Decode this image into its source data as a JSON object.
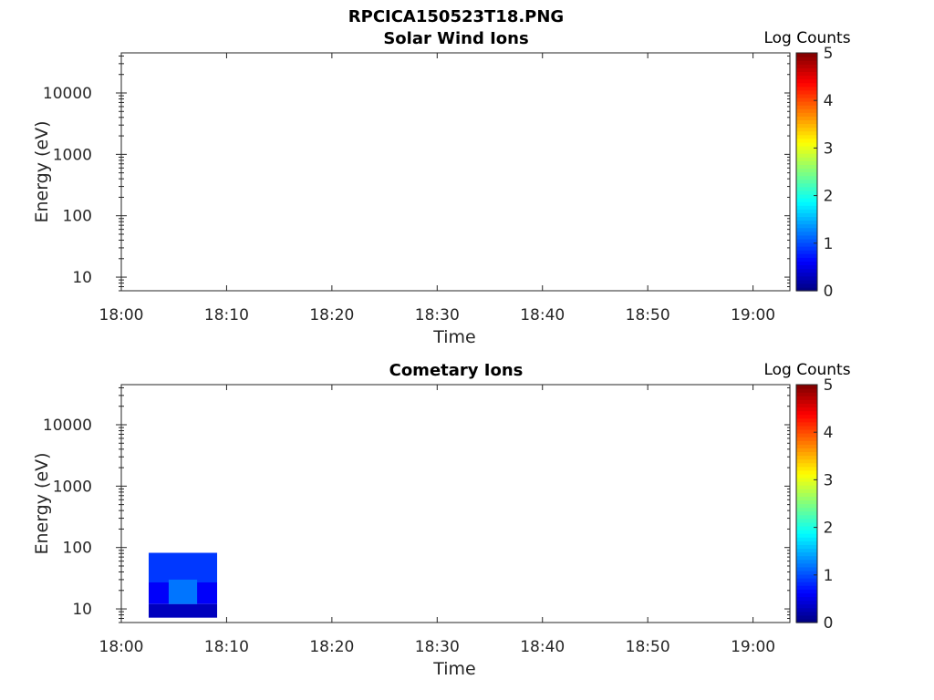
{
  "figure_title": "RPCICA150523T18.PNG",
  "chart_data": [
    {
      "type": "heatmap",
      "title": "Solar Wind Ions",
      "xlabel": "Time",
      "ylabel": "Energy (eV)",
      "y_scale": "log",
      "x_ticks": [
        "18:00",
        "18:10",
        "18:20",
        "18:30",
        "18:40",
        "18:50",
        "19:00"
      ],
      "x_range_minutes": [
        0,
        63.5
      ],
      "y_ticks": [
        10,
        100,
        1000,
        10000
      ],
      "y_range": [
        6,
        45000
      ],
      "colorbar": {
        "label": "Log Counts",
        "ticks": [
          0,
          1,
          2,
          3,
          4,
          5
        ],
        "range": [
          0,
          5
        ],
        "colormap": "jet"
      },
      "cells": []
    },
    {
      "type": "heatmap",
      "title": "Cometary Ions",
      "xlabel": "Time",
      "ylabel": "Energy (eV)",
      "y_scale": "log",
      "x_ticks": [
        "18:00",
        "18:10",
        "18:20",
        "18:30",
        "18:40",
        "18:50",
        "19:00"
      ],
      "x_range_minutes": [
        0,
        63.5
      ],
      "y_ticks": [
        10,
        100,
        1000,
        10000
      ],
      "y_range": [
        6,
        45000
      ],
      "colorbar": {
        "label": "Log Counts",
        "ticks": [
          0,
          1,
          2,
          3,
          4,
          5
        ],
        "range": [
          0,
          5
        ],
        "colormap": "jet"
      },
      "cells": [
        {
          "t_start": 2.6,
          "t_end": 9.1,
          "e_low": 27,
          "e_high": 82,
          "value": 0.9
        },
        {
          "t_start": 2.6,
          "t_end": 9.1,
          "e_low": 12,
          "e_high": 27,
          "value": 0.6
        },
        {
          "t_start": 2.6,
          "t_end": 9.1,
          "e_low": 7.2,
          "e_high": 12,
          "value": 0.3
        },
        {
          "t_start": 4.5,
          "t_end": 7.2,
          "e_low": 12,
          "e_high": 30,
          "value": 1.2
        }
      ]
    }
  ]
}
